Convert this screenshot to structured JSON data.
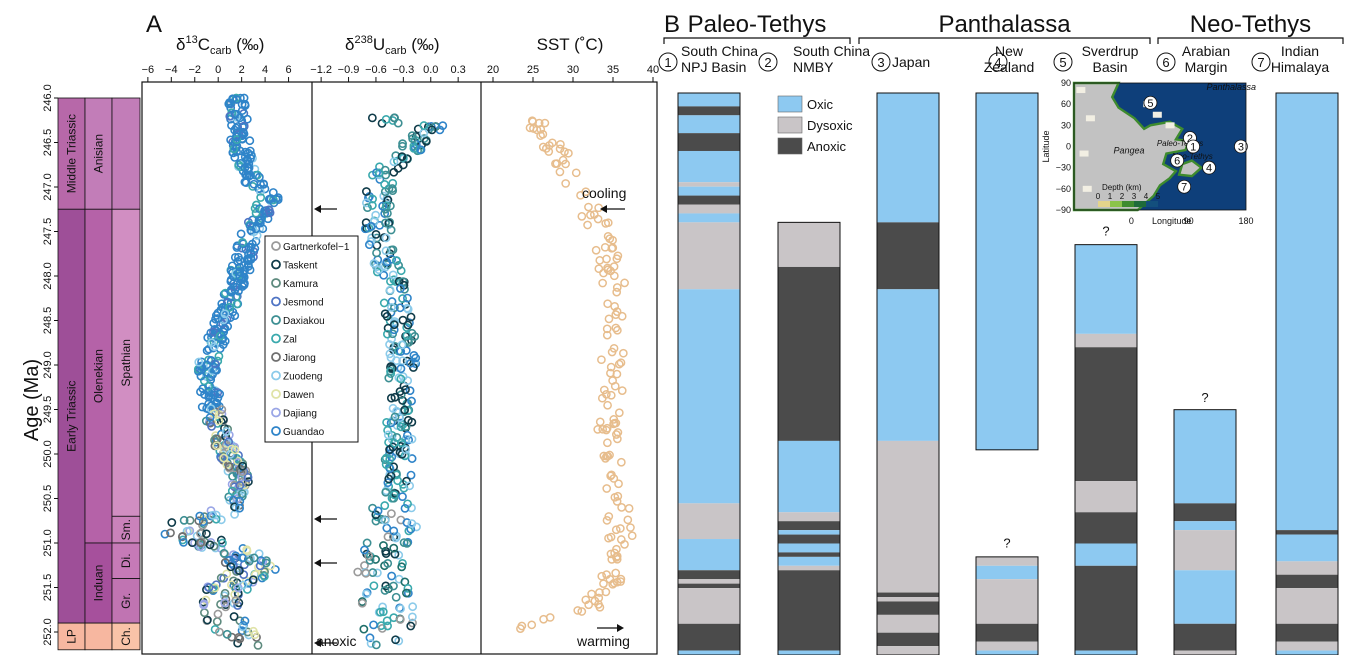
{
  "panel_a": {
    "letter": "A",
    "y_label": "Age (Ma)",
    "y_ticks": [
      "246.0",
      "246.5",
      "247.0",
      "247.5",
      "248.0",
      "248.5",
      "249.0",
      "249.5",
      "250.0",
      "250.5",
      "251.0",
      "251.5",
      "252.0"
    ],
    "ylim": [
      246.0,
      252.2
    ],
    "timescale": [
      {
        "col": 0,
        "label": "Middle Triassic",
        "from": 246.0,
        "to": 247.25,
        "color": "#b768a9"
      },
      {
        "col": 0,
        "label": "Early Triassic",
        "from": 247.25,
        "to": 251.9,
        "color": "#9e4f98"
      },
      {
        "col": 0,
        "label": "LP",
        "from": 251.9,
        "to": 252.2,
        "color": "#f7b7a0"
      },
      {
        "col": 1,
        "label": "Anisian",
        "from": 246.0,
        "to": 247.25,
        "color": "#c27db8"
      },
      {
        "col": 1,
        "label": "Olenekian",
        "from": 247.25,
        "to": 251.0,
        "color": "#b562a8"
      },
      {
        "col": 1,
        "label": "Induan",
        "from": 251.0,
        "to": 251.9,
        "color": "#a6509c"
      },
      {
        "col": 1,
        "label": "",
        "from": 251.9,
        "to": 252.2,
        "color": "#f7b7a0"
      },
      {
        "col": 2,
        "label": "",
        "from": 246.0,
        "to": 247.25,
        "color": "#c27db8"
      },
      {
        "col": 2,
        "label": "Spathian",
        "from": 247.25,
        "to": 250.7,
        "color": "#d18ec2"
      },
      {
        "col": 2,
        "label": "Sm.",
        "from": 250.7,
        "to": 251.0,
        "color": "#ca82bb"
      },
      {
        "col": 2,
        "label": "Di.",
        "from": 251.0,
        "to": 251.4,
        "color": "#c67ab7"
      },
      {
        "col": 2,
        "label": "Gr.",
        "from": 251.4,
        "to": 251.9,
        "color": "#c074b2"
      },
      {
        "col": 2,
        "label": "Ch.",
        "from": 251.9,
        "to": 252.2,
        "color": "#f9c3a8"
      }
    ],
    "annotations": {
      "cooling": "cooling",
      "warming": "warming",
      "anoxic": "anoxic"
    }
  },
  "chart_data": [
    {
      "type": "scatter",
      "title_base": "δ",
      "title_sup": "13",
      "title_main": "C",
      "title_sub": "carb",
      "title_unit": " (‰)",
      "x_ticks": [
        "−6",
        "−4",
        "−2",
        "0",
        "2",
        "4",
        "6"
      ],
      "xlim": [
        -6.5,
        8.0
      ],
      "legend": [
        {
          "name": "Gartnerkofel−1",
          "color": "#9a9a9a"
        },
        {
          "name": "Taskent",
          "color": "#0f3b49"
        },
        {
          "name": "Kamura",
          "color": "#5d8a7e"
        },
        {
          "name": "Jesmond",
          "color": "#4f74c4"
        },
        {
          "name": "Daxiakou",
          "color": "#3d8f93"
        },
        {
          "name": "Zal",
          "color": "#3aa9ad"
        },
        {
          "name": "Jiarong",
          "color": "#6f6f6f"
        },
        {
          "name": "Zuodeng",
          "color": "#8ccbea"
        },
        {
          "name": "Dawen",
          "color": "#e0e3a7"
        },
        {
          "name": "Dajiang",
          "color": "#9aa6e6"
        },
        {
          "name": "Guandao",
          "color": "#2f84c9"
        }
      ],
      "trend": [
        [
          1.5,
          246.05
        ],
        [
          2.0,
          246.6
        ],
        [
          3.0,
          246.95
        ],
        [
          4.5,
          247.1
        ],
        [
          3.5,
          247.35
        ],
        [
          2.5,
          247.6
        ],
        [
          1.8,
          248.0
        ],
        [
          0.5,
          248.5
        ],
        [
          -1.0,
          249.0
        ],
        [
          -0.5,
          249.5
        ],
        [
          0.5,
          249.9
        ],
        [
          2.0,
          250.3
        ],
        [
          1.0,
          250.6
        ],
        [
          -3.5,
          250.85
        ],
        [
          -1.0,
          251.0
        ],
        [
          1.5,
          251.1
        ],
        [
          3.0,
          251.3
        ],
        [
          0.8,
          251.5
        ],
        [
          0.5,
          251.8
        ],
        [
          1.5,
          252.1
        ]
      ]
    },
    {
      "type": "scatter",
      "title_base": "δ",
      "title_sup": "238",
      "title_main": "U",
      "title_sub": "carb",
      "title_unit": " (‰)",
      "x_ticks": [
        "−1.2",
        "−0.9",
        "−0.6",
        "−0.3",
        "0.0",
        "0.3"
      ],
      "xlim": [
        -1.3,
        0.55
      ],
      "trend": [
        [
          0.05,
          246.3
        ],
        [
          -0.55,
          246.9
        ],
        [
          -0.6,
          247.35
        ],
        [
          -0.45,
          248.0
        ],
        [
          -0.3,
          248.8
        ],
        [
          -0.35,
          249.5
        ],
        [
          -0.35,
          250.3
        ],
        [
          -0.4,
          250.85
        ],
        [
          -0.6,
          251.1
        ],
        [
          -0.5,
          251.5
        ],
        [
          -0.45,
          251.85
        ],
        [
          -0.5,
          252.1
        ]
      ]
    },
    {
      "type": "scatter",
      "title": "SST (˚C)",
      "x_ticks": [
        "20",
        "25",
        "30",
        "35",
        "40"
      ],
      "xlim": [
        18.5,
        40.5
      ],
      "trend": [
        [
          25,
          246.2
        ],
        [
          30,
          246.9
        ],
        [
          33,
          247.4
        ],
        [
          35,
          248.0
        ],
        [
          35,
          248.8
        ],
        [
          34.5,
          249.6
        ],
        [
          35,
          250.3
        ],
        [
          36,
          250.9
        ],
        [
          35,
          251.4
        ],
        [
          32,
          251.75
        ],
        [
          24,
          251.95
        ],
        [
          23,
          252.05
        ]
      ]
    },
    {
      "type": "stacked-column",
      "panel_letter": "B",
      "region_headers": [
        {
          "label": "Paleo-Tethys",
          "from": 0,
          "to": 1
        },
        {
          "label": "Panthalassa",
          "from": 2,
          "to": 4
        },
        {
          "label": "Neo-Tethys",
          "from": 5,
          "to": 6
        }
      ],
      "legend": [
        {
          "name": "Oxic",
          "color": "#8dc9f1"
        },
        {
          "name": "Dysoxic",
          "color": "#c9c5c7"
        },
        {
          "name": "Anoxic",
          "color": "#4b4b4b"
        }
      ],
      "unknown_mark": "?",
      "sections": [
        {
          "num": "1",
          "name": "South China",
          "name2": "NPJ Basin",
          "segments": [
            [
              "oxic",
              246.0,
              246.15
            ],
            [
              "anoxic",
              246.15,
              246.25
            ],
            [
              "oxic",
              246.25,
              246.45
            ],
            [
              "anoxic",
              246.45,
              246.65
            ],
            [
              "oxic",
              246.65,
              247.0
            ],
            [
              "dysoxic",
              247.0,
              247.05
            ],
            [
              "oxic",
              247.05,
              247.15
            ],
            [
              "anoxic",
              247.15,
              247.25
            ],
            [
              "dysoxic",
              247.25,
              247.35
            ],
            [
              "oxic",
              247.35,
              247.45
            ],
            [
              "dysoxic",
              247.45,
              248.2
            ],
            [
              "oxic",
              248.2,
              250.6
            ],
            [
              "dysoxic",
              250.6,
              251.0
            ],
            [
              "oxic",
              251.0,
              251.35
            ],
            [
              "anoxic",
              251.35,
              251.45
            ],
            [
              "dysoxic",
              251.45,
              251.5
            ],
            [
              "anoxic",
              251.5,
              251.55
            ],
            [
              "dysoxic",
              251.55,
              251.95
            ],
            [
              "anoxic",
              251.95,
              252.25
            ],
            [
              "oxic",
              252.25,
              252.3
            ]
          ]
        },
        {
          "num": "2",
          "name": "South China",
          "name2": "NMBY",
          "segments": [
            [
              "dysoxic",
              247.45,
              247.95
            ],
            [
              "anoxic",
              247.95,
              249.9
            ],
            [
              "oxic",
              249.9,
              250.7
            ],
            [
              "dysoxic",
              250.7,
              250.8
            ],
            [
              "anoxic",
              250.8,
              250.9
            ],
            [
              "oxic",
              250.9,
              250.95
            ],
            [
              "anoxic",
              250.95,
              251.05
            ],
            [
              "oxic",
              251.05,
              251.15
            ],
            [
              "anoxic",
              251.15,
              251.2
            ],
            [
              "oxic",
              251.2,
              251.3
            ],
            [
              "dysoxic",
              251.3,
              251.35
            ],
            [
              "anoxic",
              251.35,
              252.25
            ],
            [
              "oxic",
              252.25,
              252.3
            ]
          ]
        },
        {
          "num": "3",
          "name": "Japan",
          "name2": "",
          "segments": [
            [
              "oxic",
              246.0,
              247.45
            ],
            [
              "anoxic",
              247.45,
              248.2
            ],
            [
              "oxic",
              248.2,
              249.9
            ],
            [
              "dysoxic",
              249.9,
              251.6
            ],
            [
              "anoxic",
              251.6,
              251.65
            ],
            [
              "dysoxic",
              251.65,
              251.7
            ],
            [
              "anoxic",
              251.7,
              251.85
            ],
            [
              "dysoxic",
              251.85,
              252.05
            ],
            [
              "anoxic",
              252.05,
              252.2
            ],
            [
              "dysoxic",
              252.2,
              252.3
            ]
          ]
        },
        {
          "num": "4",
          "name": "New",
          "name2": "Zealand",
          "segments": [
            [
              "oxic",
              246.0,
              250.0
            ]
          ],
          "segments2": [
            [
              "dysoxic",
              251.2,
              251.3
            ],
            [
              "oxic",
              251.3,
              251.45
            ],
            [
              "dysoxic",
              251.45,
              251.95
            ],
            [
              "anoxic",
              251.95,
              252.15
            ],
            [
              "dysoxic",
              252.15,
              252.25
            ],
            [
              "oxic",
              252.25,
              252.3
            ]
          ],
          "unknown_at": 251.05
        },
        {
          "num": "5",
          "name": "Sverdrup",
          "name2": "Basin",
          "segments": [
            [
              "oxic",
              247.7,
              248.7
            ],
            [
              "dysoxic",
              248.7,
              248.85
            ],
            [
              "anoxic",
              248.85,
              250.35
            ],
            [
              "dysoxic",
              250.35,
              250.7
            ],
            [
              "anoxic",
              250.7,
              251.05
            ],
            [
              "oxic",
              251.05,
              251.3
            ],
            [
              "anoxic",
              251.3,
              252.25
            ],
            [
              "oxic",
              252.25,
              252.3
            ]
          ],
          "unknown_at": 247.55
        },
        {
          "num": "6",
          "name": "Arabian",
          "name2": "Margin",
          "segments": [
            [
              "oxic",
              249.55,
              250.6
            ],
            [
              "anoxic",
              250.6,
              250.8
            ],
            [
              "oxic",
              250.8,
              250.9
            ],
            [
              "dysoxic",
              250.9,
              251.35
            ],
            [
              "oxic",
              251.35,
              251.95
            ],
            [
              "anoxic",
              251.95,
              252.25
            ],
            [
              "dysoxic",
              252.25,
              252.3
            ]
          ],
          "unknown_at": 249.42
        },
        {
          "num": "7",
          "name": "Indian",
          "name2": "Himalaya",
          "segments": [
            [
              "oxic",
              246.0,
              250.9
            ],
            [
              "anoxic",
              250.9,
              250.95
            ],
            [
              "oxic",
              250.95,
              251.25
            ],
            [
              "dysoxic",
              251.25,
              251.4
            ],
            [
              "anoxic",
              251.4,
              251.55
            ],
            [
              "dysoxic",
              251.55,
              251.95
            ],
            [
              "anoxic",
              251.95,
              252.15
            ],
            [
              "dysoxic",
              252.15,
              252.25
            ],
            [
              "oxic",
              252.25,
              252.3
            ]
          ]
        }
      ]
    },
    {
      "type": "map",
      "ocean_labels": [
        "Panthalassa",
        "Paleo-Tethys",
        "Neo-Tethys"
      ],
      "continent_label": "Pangea",
      "y_label": "Latitude",
      "x_label": "Longitude",
      "y_ticks": [
        "90",
        "60",
        "30",
        "0",
        "−30",
        "−60",
        "−90"
      ],
      "x_ticks": [
        "0",
        "90",
        "180"
      ],
      "depth_label": "Depth (km)",
      "depth_ticks": [
        "0",
        "1",
        "2",
        "3",
        "4",
        "5"
      ],
      "site_marks": [
        {
          "num": "5",
          "lon": 30,
          "lat": 62
        },
        {
          "num": "2",
          "lon": 92,
          "lat": 12
        },
        {
          "num": "1",
          "lon": 97,
          "lat": 0
        },
        {
          "num": "3",
          "lon": 172,
          "lat": 0
        },
        {
          "num": "6",
          "lon": 72,
          "lat": -20
        },
        {
          "num": "4",
          "lon": 122,
          "lat": -30
        },
        {
          "num": "7",
          "lon": 83,
          "lat": -57
        }
      ]
    }
  ]
}
